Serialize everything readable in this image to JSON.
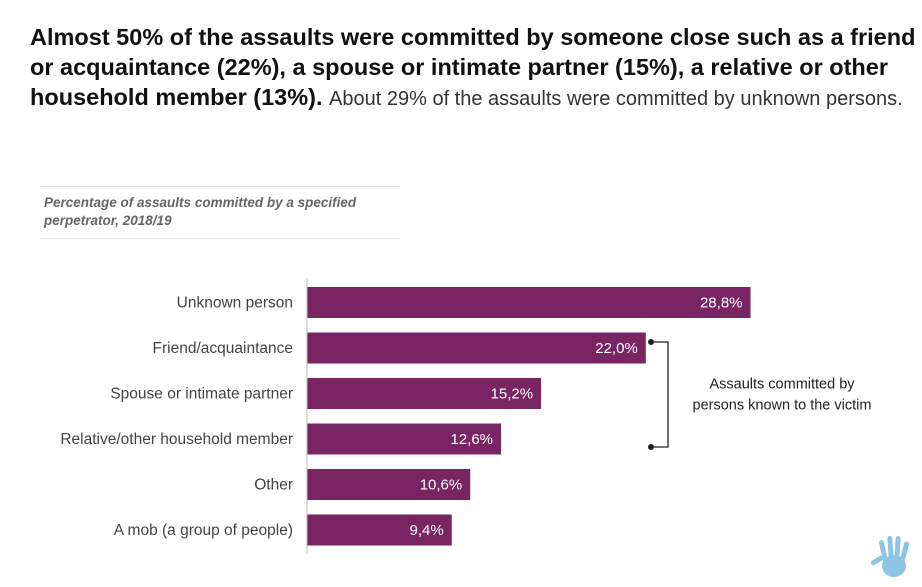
{
  "headline": {
    "bold_text": "Almost 50% of the assaults were committed by someone close such as a friend or acquaintance (22%), a spouse or intimate partner (15%), a relative or other household member (13%).",
    "normal_text": "About 29% of the assaults were committed by unknown persons."
  },
  "chart_data": {
    "type": "bar",
    "orientation": "horizontal",
    "title": "Percentage of assaults committed by a specified perpetrator, 2018/19",
    "categories": [
      "Unknown person",
      "Friend/acquaintance",
      "Spouse or intimate partner",
      "Relative/other household member",
      "Other",
      "A mob (a group of people)"
    ],
    "values": [
      28.8,
      22.0,
      15.2,
      12.6,
      10.6,
      9.4
    ],
    "value_labels": [
      "28,8%",
      "22,0%",
      "15,2%",
      "12,6%",
      "10,6%",
      "9,4%"
    ],
    "xlim": [
      0,
      30
    ],
    "grid": false,
    "annotation": {
      "lines": [
        "Assaults committed by",
        "persons known to the victim"
      ],
      "bracket_from": "Friend/acquaintance",
      "bracket_to": "Relative/other household member"
    }
  },
  "colors": {
    "bar": "#7a2563",
    "axis": "#bbbbbb",
    "bracket": "#222222",
    "logo": "#8ec5e3"
  },
  "icons": {
    "logo": "handprint-icon"
  }
}
